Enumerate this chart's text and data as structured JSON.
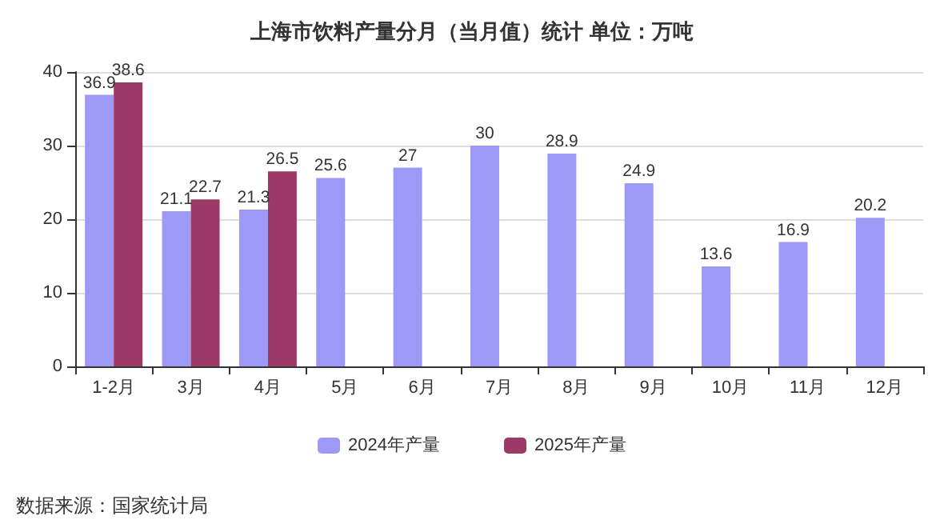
{
  "chart_data": {
    "type": "bar",
    "title": "上海市饮料产量分月（当月值）统计 单位：万吨",
    "categories": [
      "1-2月",
      "3月",
      "4月",
      "5月",
      "6月",
      "7月",
      "8月",
      "9月",
      "10月",
      "11月",
      "12月"
    ],
    "series": [
      {
        "name": "2024年产量",
        "color": "#9d9af7",
        "values": [
          36.9,
          21.1,
          21.3,
          25.6,
          27,
          30,
          28.9,
          24.9,
          13.6,
          16.9,
          20.2
        ]
      },
      {
        "name": "2025年产量",
        "color": "#9b3a67",
        "values": [
          38.6,
          22.7,
          26.5,
          null,
          null,
          null,
          null,
          null,
          null,
          null,
          null
        ]
      }
    ],
    "ylim": [
      0,
      40
    ],
    "yticks": [
      0,
      10,
      20,
      30,
      40
    ],
    "grid": "y",
    "legend": "bottom",
    "data_labels": true,
    "annotations": [
      "数据来源：国家统计局"
    ]
  }
}
